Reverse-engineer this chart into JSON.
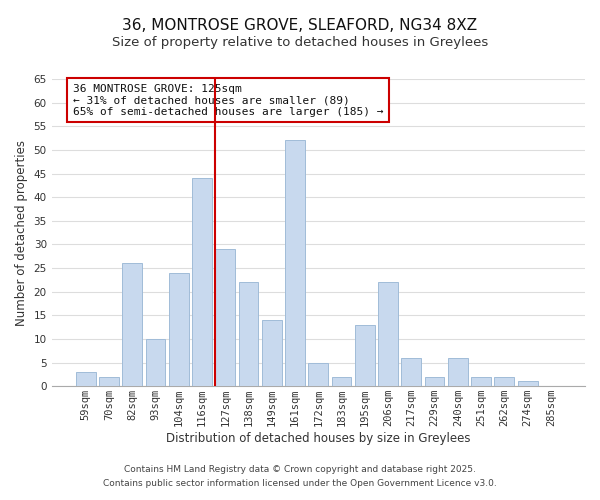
{
  "title": "36, MONTROSE GROVE, SLEAFORD, NG34 8XZ",
  "subtitle": "Size of property relative to detached houses in Greylees",
  "xlabel": "Distribution of detached houses by size in Greylees",
  "ylabel": "Number of detached properties",
  "categories": [
    "59sqm",
    "70sqm",
    "82sqm",
    "93sqm",
    "104sqm",
    "116sqm",
    "127sqm",
    "138sqm",
    "149sqm",
    "161sqm",
    "172sqm",
    "183sqm",
    "195sqm",
    "206sqm",
    "217sqm",
    "229sqm",
    "240sqm",
    "251sqm",
    "262sqm",
    "274sqm",
    "285sqm"
  ],
  "values": [
    3,
    2,
    26,
    10,
    24,
    44,
    29,
    22,
    14,
    52,
    5,
    2,
    13,
    22,
    6,
    2,
    6,
    2,
    2,
    1,
    0
  ],
  "bar_color": "#c8d9ee",
  "bar_edge_color": "#a0bcd8",
  "highlight_index": 6,
  "highlight_line_color": "#cc0000",
  "ylim": [
    0,
    65
  ],
  "yticks": [
    0,
    5,
    10,
    15,
    20,
    25,
    30,
    35,
    40,
    45,
    50,
    55,
    60,
    65
  ],
  "annotation_title": "36 MONTROSE GROVE: 125sqm",
  "annotation_line1": "← 31% of detached houses are smaller (89)",
  "annotation_line2": "65% of semi-detached houses are larger (185) →",
  "annotation_box_edge": "#cc0000",
  "footer_line1": "Contains HM Land Registry data © Crown copyright and database right 2025.",
  "footer_line2": "Contains public sector information licensed under the Open Government Licence v3.0.",
  "background_color": "#ffffff",
  "grid_color": "#dddddd",
  "title_fontsize": 11,
  "subtitle_fontsize": 9.5,
  "axis_label_fontsize": 8.5,
  "tick_fontsize": 7.5,
  "annotation_fontsize": 8,
  "footer_fontsize": 6.5
}
